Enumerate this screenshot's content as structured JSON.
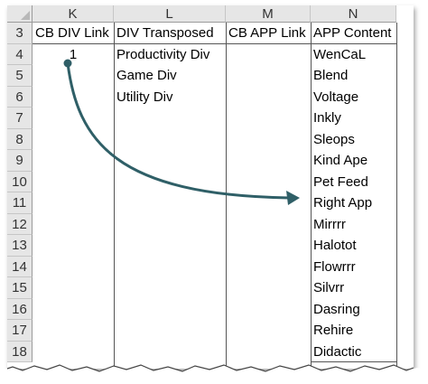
{
  "columns": [
    "K",
    "L",
    "M",
    "N"
  ],
  "rows": [
    "3",
    "4",
    "5",
    "6",
    "7",
    "8",
    "9",
    "10",
    "11",
    "12",
    "13",
    "14",
    "15",
    "16",
    "17",
    "18"
  ],
  "headers": {
    "k": "CB DIV Link",
    "l": "DIV Transposed",
    "m": "CB APP Link",
    "n": "APP Content"
  },
  "k_values": [
    "1"
  ],
  "div_transposed": [
    "Productivity Div",
    "Game Div",
    "Utility Div"
  ],
  "app_content": [
    "WenCaL",
    "Blend",
    "Voltage",
    "Inkly",
    "Sleops",
    "Kind Ape",
    "Pet Feed",
    "Right App",
    "Mirrrr",
    "Halotot",
    "Flowrrr",
    "Silvrr",
    "Dasring",
    "Rehire",
    "Didactic"
  ],
  "colors": {
    "header_fill": "#e6e6e6",
    "arrow": "#2f5f67",
    "grid_line": "#555555"
  }
}
